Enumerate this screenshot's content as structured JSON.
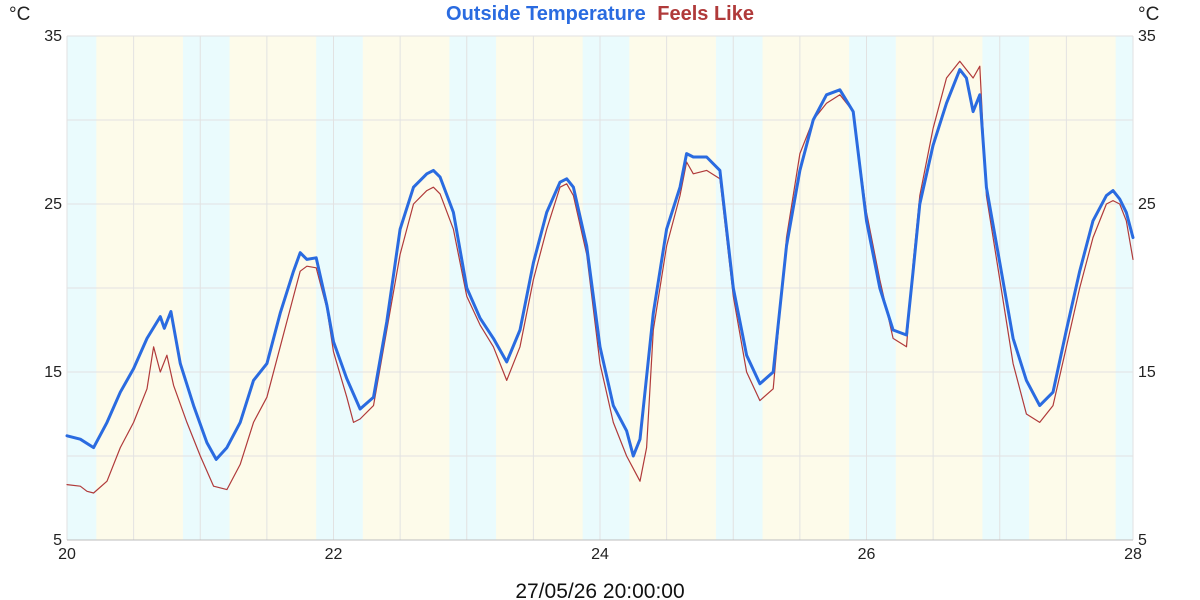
{
  "chart_data": {
    "type": "line",
    "title_parts": [
      {
        "text": "Outside Temperature",
        "color": "#2a6be0"
      },
      {
        "text": "Feels Like",
        "color": "#b03a3a"
      }
    ],
    "y_unit_left": "°C",
    "y_unit_right": "°C",
    "footer_timestamp": "27/05/26 20:00:00",
    "xlim": [
      20,
      28
    ],
    "ylim": [
      5,
      35
    ],
    "x_ticks": [
      20,
      22,
      24,
      26,
      28
    ],
    "y_ticks": [
      5,
      15,
      25,
      35
    ],
    "grid": true,
    "colors": {
      "day_band": "#fdfbea",
      "night_band": "#eafbfd",
      "grid": "#e2e2e2",
      "outside": "#2a6be0",
      "feels": "#b03a3a"
    },
    "day_periods": [
      [
        20.22,
        20.87
      ],
      [
        21.22,
        21.87
      ],
      [
        22.22,
        22.87
      ],
      [
        23.22,
        23.87
      ],
      [
        24.22,
        24.87
      ],
      [
        25.22,
        25.87
      ],
      [
        26.22,
        26.87
      ],
      [
        27.22,
        27.87
      ]
    ],
    "series": [
      {
        "name": "Outside Temperature",
        "color": "#2a6be0",
        "points": [
          [
            20.0,
            11.2
          ],
          [
            20.1,
            11.0
          ],
          [
            20.2,
            10.5
          ],
          [
            20.3,
            12.0
          ],
          [
            20.4,
            13.8
          ],
          [
            20.5,
            15.2
          ],
          [
            20.6,
            17.0
          ],
          [
            20.7,
            18.3
          ],
          [
            20.73,
            17.6
          ],
          [
            20.78,
            18.6
          ],
          [
            20.85,
            15.5
          ],
          [
            20.95,
            13.0
          ],
          [
            21.05,
            10.8
          ],
          [
            21.12,
            9.8
          ],
          [
            21.2,
            10.5
          ],
          [
            21.3,
            12.0
          ],
          [
            21.4,
            14.5
          ],
          [
            21.5,
            15.5
          ],
          [
            21.6,
            18.5
          ],
          [
            21.7,
            21.0
          ],
          [
            21.75,
            22.1
          ],
          [
            21.8,
            21.7
          ],
          [
            21.87,
            21.8
          ],
          [
            21.95,
            19.0
          ],
          [
            22.0,
            16.8
          ],
          [
            22.1,
            14.6
          ],
          [
            22.2,
            12.8
          ],
          [
            22.3,
            13.5
          ],
          [
            22.4,
            18.0
          ],
          [
            22.5,
            23.5
          ],
          [
            22.6,
            26.0
          ],
          [
            22.7,
            26.8
          ],
          [
            22.75,
            27.0
          ],
          [
            22.8,
            26.6
          ],
          [
            22.9,
            24.5
          ],
          [
            23.0,
            20.0
          ],
          [
            23.1,
            18.2
          ],
          [
            23.2,
            17.0
          ],
          [
            23.3,
            15.6
          ],
          [
            23.4,
            17.5
          ],
          [
            23.5,
            21.5
          ],
          [
            23.6,
            24.5
          ],
          [
            23.7,
            26.3
          ],
          [
            23.75,
            26.5
          ],
          [
            23.8,
            26.0
          ],
          [
            23.9,
            22.5
          ],
          [
            24.0,
            16.5
          ],
          [
            24.1,
            13.0
          ],
          [
            24.2,
            11.5
          ],
          [
            24.25,
            10.0
          ],
          [
            24.3,
            11.0
          ],
          [
            24.4,
            18.5
          ],
          [
            24.5,
            23.5
          ],
          [
            24.6,
            26.0
          ],
          [
            24.65,
            28.0
          ],
          [
            24.7,
            27.8
          ],
          [
            24.8,
            27.8
          ],
          [
            24.9,
            27.0
          ],
          [
            25.0,
            20.0
          ],
          [
            25.1,
            16.0
          ],
          [
            25.2,
            14.3
          ],
          [
            25.3,
            15.0
          ],
          [
            25.4,
            22.5
          ],
          [
            25.5,
            27.0
          ],
          [
            25.6,
            30.0
          ],
          [
            25.7,
            31.5
          ],
          [
            25.8,
            31.8
          ],
          [
            25.9,
            30.5
          ],
          [
            26.0,
            24.0
          ],
          [
            26.1,
            20.0
          ],
          [
            26.2,
            17.5
          ],
          [
            26.3,
            17.2
          ],
          [
            26.35,
            21.0
          ],
          [
            26.4,
            25.0
          ],
          [
            26.5,
            28.5
          ],
          [
            26.6,
            31.0
          ],
          [
            26.7,
            33.0
          ],
          [
            26.75,
            32.5
          ],
          [
            26.8,
            30.5
          ],
          [
            26.85,
            31.5
          ],
          [
            26.9,
            26.0
          ],
          [
            27.0,
            21.5
          ],
          [
            27.1,
            17.0
          ],
          [
            27.2,
            14.5
          ],
          [
            27.3,
            13.0
          ],
          [
            27.4,
            13.8
          ],
          [
            27.5,
            17.5
          ],
          [
            27.6,
            21.0
          ],
          [
            27.7,
            24.0
          ],
          [
            27.8,
            25.5
          ],
          [
            27.85,
            25.8
          ],
          [
            27.9,
            25.3
          ],
          [
            27.95,
            24.5
          ],
          [
            28.0,
            23.0
          ]
        ]
      },
      {
        "name": "Feels Like",
        "color": "#b03a3a",
        "points": [
          [
            20.0,
            8.3
          ],
          [
            20.1,
            8.2
          ],
          [
            20.15,
            7.9
          ],
          [
            20.2,
            7.8
          ],
          [
            20.3,
            8.5
          ],
          [
            20.4,
            10.5
          ],
          [
            20.5,
            12.0
          ],
          [
            20.6,
            14.0
          ],
          [
            20.65,
            16.5
          ],
          [
            20.7,
            15.0
          ],
          [
            20.75,
            16.0
          ],
          [
            20.8,
            14.2
          ],
          [
            20.9,
            12.0
          ],
          [
            21.0,
            10.0
          ],
          [
            21.1,
            8.2
          ],
          [
            21.2,
            8.0
          ],
          [
            21.3,
            9.5
          ],
          [
            21.4,
            12.0
          ],
          [
            21.5,
            13.5
          ],
          [
            21.6,
            16.5
          ],
          [
            21.7,
            19.5
          ],
          [
            21.75,
            21.0
          ],
          [
            21.8,
            21.3
          ],
          [
            21.87,
            21.2
          ],
          [
            21.95,
            18.8
          ],
          [
            22.0,
            16.2
          ],
          [
            22.1,
            13.5
          ],
          [
            22.15,
            12.0
          ],
          [
            22.2,
            12.2
          ],
          [
            22.3,
            13.0
          ],
          [
            22.4,
            17.5
          ],
          [
            22.5,
            22.0
          ],
          [
            22.6,
            25.0
          ],
          [
            22.7,
            25.8
          ],
          [
            22.75,
            26.0
          ],
          [
            22.8,
            25.6
          ],
          [
            22.9,
            23.5
          ],
          [
            23.0,
            19.5
          ],
          [
            23.1,
            17.8
          ],
          [
            23.2,
            16.5
          ],
          [
            23.3,
            14.5
          ],
          [
            23.4,
            16.5
          ],
          [
            23.5,
            20.5
          ],
          [
            23.6,
            23.5
          ],
          [
            23.7,
            26.0
          ],
          [
            23.75,
            26.2
          ],
          [
            23.8,
            25.5
          ],
          [
            23.9,
            22.0
          ],
          [
            24.0,
            15.5
          ],
          [
            24.1,
            12.0
          ],
          [
            24.2,
            10.0
          ],
          [
            24.3,
            8.5
          ],
          [
            24.35,
            10.5
          ],
          [
            24.4,
            17.5
          ],
          [
            24.5,
            22.5
          ],
          [
            24.6,
            25.5
          ],
          [
            24.65,
            27.5
          ],
          [
            24.7,
            26.8
          ],
          [
            24.8,
            27.0
          ],
          [
            24.9,
            26.5
          ],
          [
            25.0,
            19.5
          ],
          [
            25.1,
            15.0
          ],
          [
            25.2,
            13.3
          ],
          [
            25.3,
            14.0
          ],
          [
            25.4,
            23.0
          ],
          [
            25.5,
            28.0
          ],
          [
            25.6,
            30.0
          ],
          [
            25.7,
            31.0
          ],
          [
            25.8,
            31.5
          ],
          [
            25.9,
            30.5
          ],
          [
            26.0,
            24.5
          ],
          [
            26.1,
            20.5
          ],
          [
            26.2,
            17.0
          ],
          [
            26.3,
            16.5
          ],
          [
            26.35,
            21.5
          ],
          [
            26.4,
            25.5
          ],
          [
            26.5,
            29.5
          ],
          [
            26.6,
            32.5
          ],
          [
            26.7,
            33.5
          ],
          [
            26.75,
            33.0
          ],
          [
            26.8,
            32.5
          ],
          [
            26.85,
            33.2
          ],
          [
            26.9,
            25.5
          ],
          [
            27.0,
            20.5
          ],
          [
            27.1,
            15.5
          ],
          [
            27.2,
            12.5
          ],
          [
            27.3,
            12.0
          ],
          [
            27.4,
            13.0
          ],
          [
            27.5,
            16.5
          ],
          [
            27.6,
            20.0
          ],
          [
            27.7,
            23.0
          ],
          [
            27.8,
            25.0
          ],
          [
            27.85,
            25.2
          ],
          [
            27.9,
            25.0
          ],
          [
            27.95,
            24.0
          ],
          [
            28.0,
            21.7
          ]
        ]
      }
    ]
  }
}
